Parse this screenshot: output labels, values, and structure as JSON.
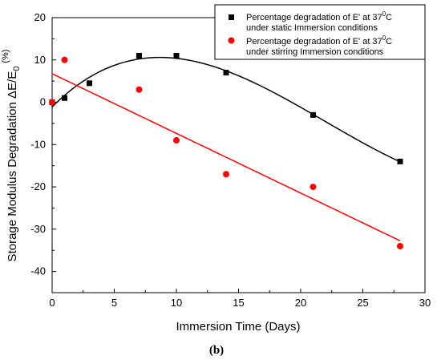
{
  "chart_data": {
    "type": "scatter",
    "x_ticks": [
      "0",
      "5",
      "10",
      "15",
      "20",
      "25",
      "30"
    ],
    "y_ticks": [
      "20",
      "10",
      "0",
      "-10",
      "-20",
      "-30",
      "-40"
    ],
    "xlim": [
      0,
      30
    ],
    "ylim": [
      -45,
      20
    ],
    "xlabel": "Immersion Time (Days)",
    "ylabel": "Storage Modulus Degradation ΔE/E",
    "ylabel_subscript": "0",
    "ylabel_unit": "(%)",
    "legend_position": "top-right",
    "series": [
      {
        "legend_line1": "Percentage degradation of E' at 37",
        "legend_sup": "0",
        "legend_line1_end": "C",
        "legend_line2": "under static Immersion conditions",
        "marker": "square",
        "color": "#000000",
        "fit": "polynomial",
        "x": [
          0,
          1,
          3,
          7,
          10,
          14,
          21,
          28
        ],
        "y": [
          0,
          1,
          4.5,
          11,
          11,
          7,
          -3,
          -14
        ]
      },
      {
        "legend_line1": "Percentage degradation of E' at 37",
        "legend_sup": "0",
        "legend_line1_end": "C",
        "legend_line2": "under stirring Immersion conditions",
        "marker": "circle",
        "color": "#ff0000",
        "fit": "linear",
        "x": [
          0,
          1,
          7,
          10,
          14,
          21,
          28
        ],
        "y": [
          0,
          10,
          3,
          -9,
          -17,
          -20,
          -34
        ]
      }
    ],
    "caption": "(b)"
  }
}
